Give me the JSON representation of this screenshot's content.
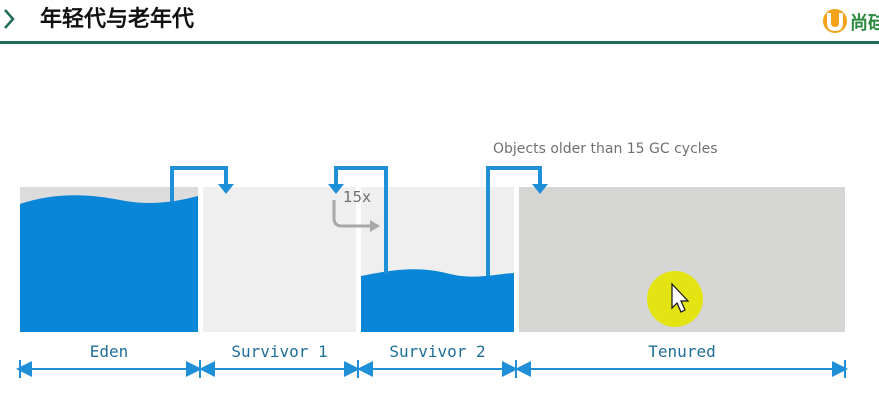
{
  "header": {
    "title": "年轻代与老年代",
    "logo_text": "尚硅",
    "rule_color": "#1f6b5a"
  },
  "diagram": {
    "annotation": "Objects older than 15 GC cycles",
    "promotion_count": "15x",
    "regions": [
      {
        "label": "Eden"
      },
      {
        "label": "Survivor 1"
      },
      {
        "label": "Survivor 2"
      },
      {
        "label": "Tenured"
      }
    ],
    "colors": {
      "fill_blue": "#0a86d8",
      "region_gray": "#dcdcdc",
      "survivor_light": "#efefef",
      "tenured_gray": "#d6d6d4",
      "arrow_blue": "#1f8fd8",
      "arrow_gray": "#a8a8a8",
      "cursor_highlight": "#e6e600"
    }
  }
}
